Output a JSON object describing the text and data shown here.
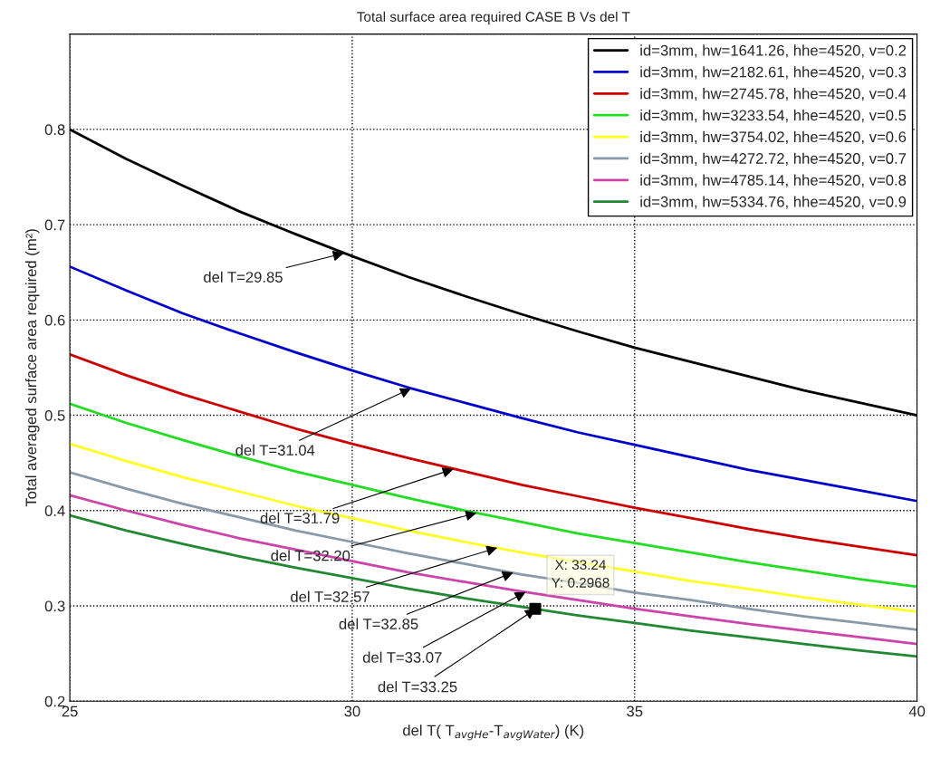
{
  "chart_data": {
    "type": "line",
    "title": "Total surface area required CASE B Vs del T",
    "xlabel": "del T( T$_{avgHe}$-T$_{avgWater}$) (K)",
    "ylabel": "Total averaged surface area required (m²)",
    "x": [
      25,
      26,
      27,
      28,
      29,
      30,
      31,
      32,
      33,
      34,
      35,
      36,
      37,
      38,
      39,
      40
    ],
    "series": [
      {
        "name": "id=3mm, hw=1641.26, hhe=4520, v=0.2",
        "color": "#000000",
        "values": [
          0.8,
          0.769,
          0.741,
          0.714,
          0.69,
          0.667,
          0.645,
          0.625,
          0.606,
          0.588,
          0.571,
          0.556,
          0.541,
          0.526,
          0.513,
          0.5
        ]
      },
      {
        "name": "id=3mm, hw=2182.61, hhe=4520, v=0.3",
        "color": "#0000cc",
        "values": [
          0.656,
          0.631,
          0.607,
          0.586,
          0.566,
          0.547,
          0.529,
          0.513,
          0.497,
          0.482,
          0.469,
          0.456,
          0.443,
          0.432,
          0.421,
          0.41
        ]
      },
      {
        "name": "id=3mm, hw=2745.78, hhe=4520, v=0.4",
        "color": "#cc0000",
        "values": [
          0.564,
          0.542,
          0.522,
          0.504,
          0.486,
          0.47,
          0.455,
          0.441,
          0.427,
          0.415,
          0.403,
          0.392,
          0.381,
          0.371,
          0.362,
          0.353
        ]
      },
      {
        "name": "id=3mm, hw=3233.54, hhe=4520, v=0.5",
        "color": "#22dd22",
        "values": [
          0.512,
          0.492,
          0.474,
          0.457,
          0.441,
          0.427,
          0.413,
          0.4,
          0.388,
          0.376,
          0.366,
          0.356,
          0.346,
          0.337,
          0.328,
          0.32
        ]
      },
      {
        "name": "id=3mm, hw=3754.02, hhe=4520, v=0.6",
        "color": "#ffff22",
        "values": [
          0.47,
          0.452,
          0.435,
          0.42,
          0.405,
          0.392,
          0.379,
          0.367,
          0.356,
          0.346,
          0.336,
          0.326,
          0.318,
          0.309,
          0.301,
          0.294
        ]
      },
      {
        "name": "id=3mm, hw=4272.72, hhe=4520, v=0.7",
        "color": "#8899aa",
        "values": [
          0.44,
          0.423,
          0.407,
          0.393,
          0.379,
          0.367,
          0.355,
          0.344,
          0.333,
          0.324,
          0.314,
          0.306,
          0.297,
          0.289,
          0.282,
          0.275
        ]
      },
      {
        "name": "id=3mm, hw=4785.14, hhe=4520, v=0.8",
        "color": "#cc44aa",
        "values": [
          0.416,
          0.4,
          0.385,
          0.371,
          0.359,
          0.347,
          0.335,
          0.325,
          0.315,
          0.306,
          0.297,
          0.289,
          0.281,
          0.274,
          0.267,
          0.26
        ]
      },
      {
        "name": "id=3mm, hw=5334.76, hhe=4520, v=0.9",
        "color": "#228833",
        "values": [
          0.395,
          0.379,
          0.365,
          0.352,
          0.34,
          0.329,
          0.318,
          0.308,
          0.299,
          0.29,
          0.282,
          0.274,
          0.267,
          0.26,
          0.253,
          0.247
        ]
      },
      {
        "type": "scatter",
        "color": "#000000",
        "marker": "square",
        "x": [
          33.24
        ],
        "values": [
          0.2968
        ]
      }
    ],
    "annotations": [
      {
        "text": "del T=29.85",
        "x": 29.85,
        "y": 0.67
      },
      {
        "text": "del T=31.04",
        "x": 31.04,
        "y": 0.528
      },
      {
        "text": "del T=31.79",
        "x": 31.79,
        "y": 0.4435
      },
      {
        "text": "del T=32.20",
        "x": 32.2,
        "y": 0.3975
      },
      {
        "text": "del T=32.57",
        "x": 32.57,
        "y": 0.361
      },
      {
        "text": "del T=32.85",
        "x": 32.85,
        "y": 0.335
      },
      {
        "text": "del T=33.07",
        "x": 33.07,
        "y": 0.3145
      },
      {
        "text": "del T=33.25",
        "x": 33.25,
        "y": 0.2968
      },
      {
        "text": "X: 33.24\nY: 0.2968",
        "x": 33.24,
        "y": 0.2968
      }
    ],
    "xlim": [
      25,
      40
    ],
    "xticks": [
      25,
      30,
      35,
      40
    ],
    "ylim": [
      0.2,
      0.9
    ],
    "yticks": [
      0.2,
      0.3,
      0.4,
      0.5,
      0.6,
      0.7,
      0.8,
      {
        "value": 0.9,
        "label": null
      }
    ],
    "grid": true,
    "legend": "top right",
    "marker": "none",
    "line_style": "solid"
  }
}
